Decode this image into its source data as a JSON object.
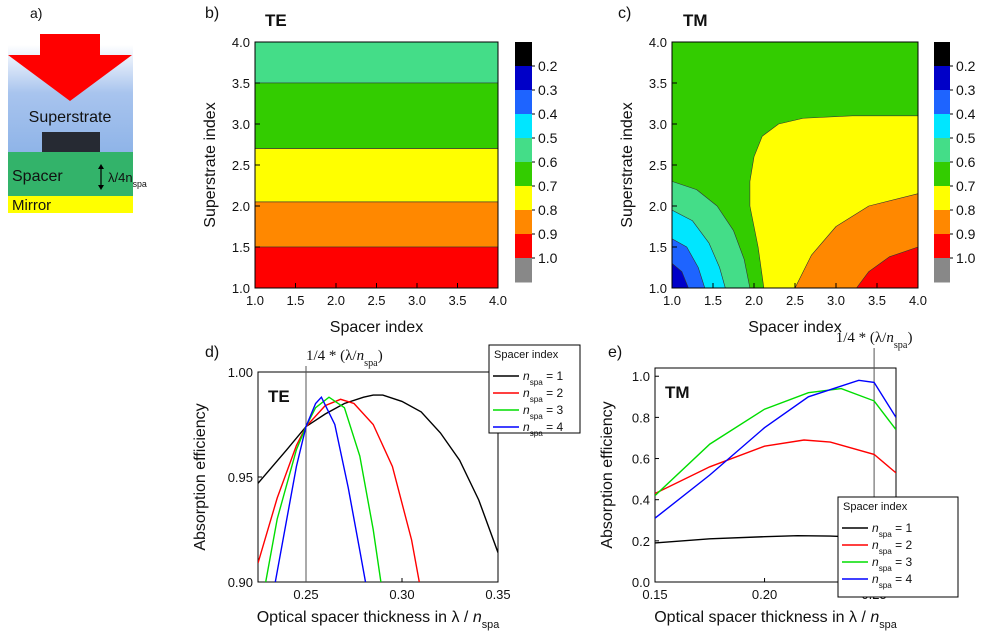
{
  "diagram": {
    "label": "a)",
    "superstrate": "Superstrate",
    "spacer": "Spacer",
    "thickness": [
      "λ/4n",
      "spa"
    ],
    "mirror": "Mirror"
  },
  "chart_data": [
    {
      "type": "contour",
      "panel": "b)",
      "title": "TE",
      "xlabel": "Spacer index",
      "ylabel": "Superstrate index",
      "xlim": [
        1,
        4
      ],
      "ylim": [
        1,
        4
      ],
      "xticks": [
        {
          "value": 1,
          "label": "1.0"
        },
        1.5,
        {
          "value": 2,
          "label": "2.0"
        },
        2.5,
        {
          "value": 3,
          "label": "3.0"
        },
        3.5,
        {
          "value": 4,
          "label": "4.0"
        }
      ],
      "yticks": [
        {
          "value": 1,
          "label": "1.0"
        },
        1.5,
        {
          "value": 2,
          "label": "2.0"
        },
        2.5,
        {
          "value": 3,
          "label": "3.0"
        },
        3.5,
        {
          "value": 4,
          "label": "4.0"
        }
      ],
      "colorbar": {
        "colors": [
          "#000000",
          "#0000c8",
          "#1e64ff",
          "#00e6ff",
          "#44dd88",
          "#33cc00",
          "#ffff00",
          "#ff8800",
          "#ff0000",
          "#888888"
        ],
        "ticks": [
          0.2,
          0.3,
          0.4,
          0.5,
          0.6,
          0.7,
          0.8,
          0.9,
          {
            "value": 1,
            "label": "1.0"
          }
        ]
      },
      "regions": [
        {
          "level": 0.5,
          "points": [
            [
              1,
              3.5
            ],
            [
              4,
              3.5
            ],
            [
              4,
              4
            ],
            [
              1,
              4
            ]
          ]
        },
        {
          "level": 0.6,
          "points": [
            [
              1,
              2.7
            ],
            [
              4,
              2.7
            ],
            [
              4,
              3.5
            ],
            [
              1,
              3.5
            ]
          ]
        },
        {
          "level": 0.7,
          "points": [
            [
              1,
              2.05
            ],
            [
              4,
              2.05
            ],
            [
              4,
              2.7
            ],
            [
              1,
              2.7
            ]
          ]
        },
        {
          "level": 0.8,
          "points": [
            [
              1,
              1.5
            ],
            [
              4,
              1.5
            ],
            [
              4,
              2.05
            ],
            [
              1,
              2.05
            ]
          ]
        },
        {
          "level": 0.9,
          "points": [
            [
              1,
              1
            ],
            [
              4,
              1
            ],
            [
              4,
              1.5
            ],
            [
              1,
              1.5
            ]
          ]
        }
      ]
    },
    {
      "type": "contour",
      "panel": "c)",
      "title": "TM",
      "xlabel": "Spacer index",
      "ylabel": "Superstrate index",
      "xlim": [
        1,
        4
      ],
      "ylim": [
        1,
        4
      ],
      "xticks": [
        {
          "value": 1,
          "label": "1.0"
        },
        1.5,
        {
          "value": 2,
          "label": "2.0"
        },
        2.5,
        {
          "value": 3,
          "label": "3.0"
        },
        3.5,
        {
          "value": 4,
          "label": "4.0"
        }
      ],
      "yticks": [
        {
          "value": 1,
          "label": "1.0"
        },
        1.5,
        {
          "value": 2,
          "label": "2.0"
        },
        2.5,
        {
          "value": 3,
          "label": "3.0"
        },
        3.5,
        {
          "value": 4,
          "label": "4.0"
        }
      ],
      "colorbar": {
        "colors": [
          "#000000",
          "#0000c8",
          "#1e64ff",
          "#00e6ff",
          "#44dd88",
          "#33cc00",
          "#ffff00",
          "#ff8800",
          "#ff0000",
          "#888888"
        ],
        "ticks": [
          0.2,
          0.3,
          0.4,
          0.5,
          0.6,
          0.7,
          0.8,
          0.9,
          {
            "value": 1,
            "label": "1.0"
          }
        ]
      },
      "regions": [
        {
          "level": 0.6,
          "points": [
            [
              1,
              1
            ],
            [
              4,
              1
            ],
            [
              4,
              4
            ],
            [
              1,
              4
            ]
          ]
        },
        {
          "level": 0.7,
          "points": [
            [
              2.12,
              1
            ],
            [
              2.05,
              1.5
            ],
            [
              1.95,
              2.0
            ],
            [
              1.95,
              2.3
            ],
            [
              2.0,
              2.6
            ],
            [
              2.1,
              2.85
            ],
            [
              2.3,
              3.0
            ],
            [
              2.6,
              3.07
            ],
            [
              3.2,
              3.1
            ],
            [
              4,
              3.1
            ],
            [
              4,
              1
            ]
          ]
        },
        {
          "level": 0.8,
          "points": [
            [
              2.5,
              1
            ],
            [
              2.7,
              1.4
            ],
            [
              3.0,
              1.75
            ],
            [
              3.4,
              2.0
            ],
            [
              4,
              2.15
            ],
            [
              4,
              1
            ]
          ]
        },
        {
          "level": 0.9,
          "points": [
            [
              3.25,
              1
            ],
            [
              3.4,
              1.2
            ],
            [
              3.65,
              1.38
            ],
            [
              4,
              1.5
            ],
            [
              4,
              1
            ]
          ]
        },
        {
          "level": 0.5,
          "points": [
            [
              1,
              1
            ],
            [
              1,
              2.3
            ],
            [
              1.3,
              2.2
            ],
            [
              1.55,
              2.0
            ],
            [
              1.75,
              1.7
            ],
            [
              1.88,
              1.35
            ],
            [
              1.95,
              1
            ]
          ]
        },
        {
          "level": 0.4,
          "points": [
            [
              1,
              1
            ],
            [
              1,
              1.95
            ],
            [
              1.25,
              1.82
            ],
            [
              1.45,
              1.55
            ],
            [
              1.58,
              1.25
            ],
            [
              1.65,
              1
            ]
          ]
        },
        {
          "level": 0.3,
          "points": [
            [
              1,
              1
            ],
            [
              1,
              1.6
            ],
            [
              1.18,
              1.5
            ],
            [
              1.32,
              1.25
            ],
            [
              1.4,
              1
            ]
          ]
        },
        {
          "level": 0.2,
          "points": [
            [
              1,
              1
            ],
            [
              1,
              1.3
            ],
            [
              1.12,
              1.2
            ],
            [
              1.2,
              1
            ]
          ]
        }
      ]
    },
    {
      "type": "line",
      "panel": "d)",
      "title": "TE",
      "xlabel": [
        "Optical spacer thickness in λ / ",
        "n",
        "spa"
      ],
      "ylabel": "Absorption efficiency",
      "xlim": [
        0.225,
        0.35
      ],
      "ylim": [
        0.9,
        1.0
      ],
      "xticks": [
        0.25,
        {
          "value": 0.3,
          "label": "0.30"
        },
        0.35
      ],
      "yticks": [
        {
          "value": 0.9,
          "label": "0.90"
        },
        0.95,
        {
          "value": 1,
          "label": "1.00"
        }
      ],
      "annotation": {
        "x": 0.25,
        "text": [
          "1/4 * (λ/",
          "n",
          "spa",
          ")"
        ]
      },
      "legend": {
        "title": "Spacer index",
        "corner": "top right"
      },
      "series": [
        {
          "name": [
            "n",
            "spa",
            " =  1"
          ],
          "color": "#000000",
          "x": [
            0.225,
            0.24,
            0.25,
            0.26,
            0.27,
            0.28,
            0.285,
            0.29,
            0.3,
            0.31,
            0.32,
            0.33,
            0.34,
            0.35
          ],
          "values": [
            0.947,
            0.963,
            0.974,
            0.98,
            0.985,
            0.988,
            0.989,
            0.989,
            0.986,
            0.981,
            0.971,
            0.958,
            0.939,
            0.914
          ]
        },
        {
          "name": [
            "n",
            "spa",
            " =  2"
          ],
          "color": "#ff0000",
          "x": [
            0.225,
            0.235,
            0.245,
            0.25,
            0.26,
            0.268,
            0.275,
            0.285,
            0.295,
            0.305,
            0.309
          ],
          "values": [
            0.909,
            0.94,
            0.965,
            0.974,
            0.984,
            0.987,
            0.985,
            0.975,
            0.955,
            0.92,
            0.9
          ]
        },
        {
          "name": [
            "n",
            "spa",
            " =  3"
          ],
          "color": "#00dd00",
          "x": [
            0.229,
            0.235,
            0.245,
            0.25,
            0.255,
            0.262,
            0.27,
            0.278,
            0.285,
            0.289
          ],
          "values": [
            0.9,
            0.93,
            0.963,
            0.974,
            0.983,
            0.988,
            0.983,
            0.96,
            0.925,
            0.9
          ]
        },
        {
          "name": [
            "n",
            "spa",
            " =  4"
          ],
          "color": "#0000ff",
          "x": [
            0.234,
            0.24,
            0.245,
            0.25,
            0.255,
            0.258,
            0.265,
            0.272,
            0.278,
            0.281
          ],
          "values": [
            0.9,
            0.93,
            0.955,
            0.974,
            0.985,
            0.988,
            0.975,
            0.945,
            0.915,
            0.9
          ]
        }
      ]
    },
    {
      "type": "line",
      "panel": "e)",
      "title": "TM",
      "xlabel": [
        "Optical spacer thickness in λ / ",
        "n",
        "spa"
      ],
      "ylabel": "Absorption efficiency",
      "xlim": [
        0.15,
        0.26
      ],
      "ylim": [
        0,
        1.04
      ],
      "xticks": [
        0.15,
        {
          "value": 0.2,
          "label": "0.20"
        },
        0.25
      ],
      "yticks": [
        {
          "value": 0,
          "label": "0.0"
        },
        0.2,
        0.4,
        0.6,
        0.8,
        {
          "value": 1,
          "label": "1.0"
        }
      ],
      "annotation": {
        "x": 0.25,
        "text": [
          "1/4 * (λ/",
          "n",
          "spa",
          ")"
        ]
      },
      "legend": {
        "title": "Spacer index",
        "corner": "bottom right"
      },
      "series": [
        {
          "name": [
            "n",
            "spa",
            " =  1"
          ],
          "color": "#000000",
          "x": [
            0.15,
            0.175,
            0.2,
            0.215,
            0.23,
            0.25,
            0.26
          ],
          "values": [
            0.19,
            0.21,
            0.22,
            0.225,
            0.223,
            0.215,
            0.205
          ]
        },
        {
          "name": [
            "n",
            "spa",
            " =  2"
          ],
          "color": "#ff0000",
          "x": [
            0.15,
            0.175,
            0.2,
            0.218,
            0.23,
            0.25,
            0.26
          ],
          "values": [
            0.43,
            0.56,
            0.66,
            0.69,
            0.68,
            0.62,
            0.53
          ]
        },
        {
          "name": [
            "n",
            "spa",
            " =  3"
          ],
          "color": "#00dd00",
          "x": [
            0.15,
            0.175,
            0.2,
            0.22,
            0.235,
            0.25,
            0.26
          ],
          "values": [
            0.42,
            0.67,
            0.84,
            0.92,
            0.94,
            0.88,
            0.74
          ]
        },
        {
          "name": [
            "n",
            "spa",
            " =  4"
          ],
          "color": "#0000ff",
          "x": [
            0.15,
            0.175,
            0.2,
            0.22,
            0.243,
            0.25,
            0.26
          ],
          "values": [
            0.31,
            0.52,
            0.75,
            0.9,
            0.98,
            0.97,
            0.8
          ]
        }
      ]
    }
  ]
}
